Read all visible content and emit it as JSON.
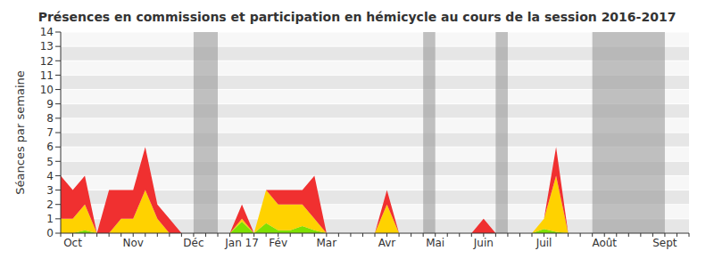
{
  "chart_data": {
    "type": "area",
    "stacked": true,
    "grid": true,
    "title": "Présences en commissions et participation en hémicycle au cours de la session 2016-2017",
    "y_label": "Séances par semaine",
    "categories": [
      null,
      "Oct",
      null,
      null,
      null,
      null,
      "Nov",
      null,
      null,
      null,
      null,
      "Déc",
      null,
      null,
      null,
      "Jan 17",
      null,
      null,
      "Fév",
      null,
      null,
      null,
      "Mar",
      null,
      null,
      null,
      null,
      "Avr",
      null,
      null,
      null,
      "Mai",
      null,
      null,
      null,
      "Juin",
      null,
      null,
      null,
      null,
      "Juil",
      null,
      null,
      null,
      null,
      "Août",
      null,
      null,
      null,
      null,
      "Sept",
      null,
      null
    ],
    "series": [
      {
        "color": "#7fe000",
        "values": [
          0,
          0,
          0.2,
          0,
          0,
          0,
          0,
          0,
          0,
          0,
          0,
          0,
          0,
          0,
          0,
          0.8,
          0,
          0.7,
          0.2,
          0.2,
          0.5,
          0.2,
          0,
          0,
          0,
          0,
          0,
          0,
          0,
          0,
          0,
          0,
          0,
          0,
          0,
          0,
          0,
          0,
          0,
          0,
          0.3,
          0.1,
          0,
          0,
          0,
          0,
          0,
          0,
          0,
          0,
          0,
          0,
          0
        ]
      },
      {
        "color": "#ffd200",
        "values": [
          1,
          1,
          1.8,
          0,
          0,
          1,
          1,
          3,
          1,
          0,
          0,
          0,
          0,
          0,
          0,
          0.2,
          0,
          2.3,
          1.8,
          1.8,
          1.5,
          0.8,
          0,
          0,
          0,
          0,
          0,
          2,
          0,
          0,
          0,
          0,
          0,
          0,
          0,
          0,
          0,
          0,
          0,
          0,
          0.7,
          3.9,
          0,
          0,
          0,
          0,
          0,
          0,
          0,
          0,
          0,
          0,
          0
        ]
      },
      {
        "color": "#f03030",
        "values": [
          3,
          2,
          2,
          0,
          3,
          2,
          2,
          3,
          1,
          1,
          0,
          0,
          0,
          0,
          0,
          1,
          0,
          0,
          1,
          1,
          1,
          3,
          0,
          0,
          0,
          0,
          0,
          1,
          0,
          0,
          0,
          0,
          0,
          0,
          0,
          1,
          0,
          0,
          0,
          0,
          0,
          2,
          0,
          0,
          0,
          0,
          0,
          0,
          0,
          0,
          0,
          0,
          0
        ]
      }
    ],
    "shaded_ranges": [
      [
        11,
        13
      ],
      [
        30,
        31
      ],
      [
        36,
        37
      ],
      [
        44,
        50
      ]
    ],
    "ylim": [
      0,
      14
    ],
    "yticks": [
      0,
      1,
      2,
      3,
      4,
      5,
      6,
      7,
      8,
      9,
      10,
      11,
      12,
      13,
      14
    ]
  }
}
